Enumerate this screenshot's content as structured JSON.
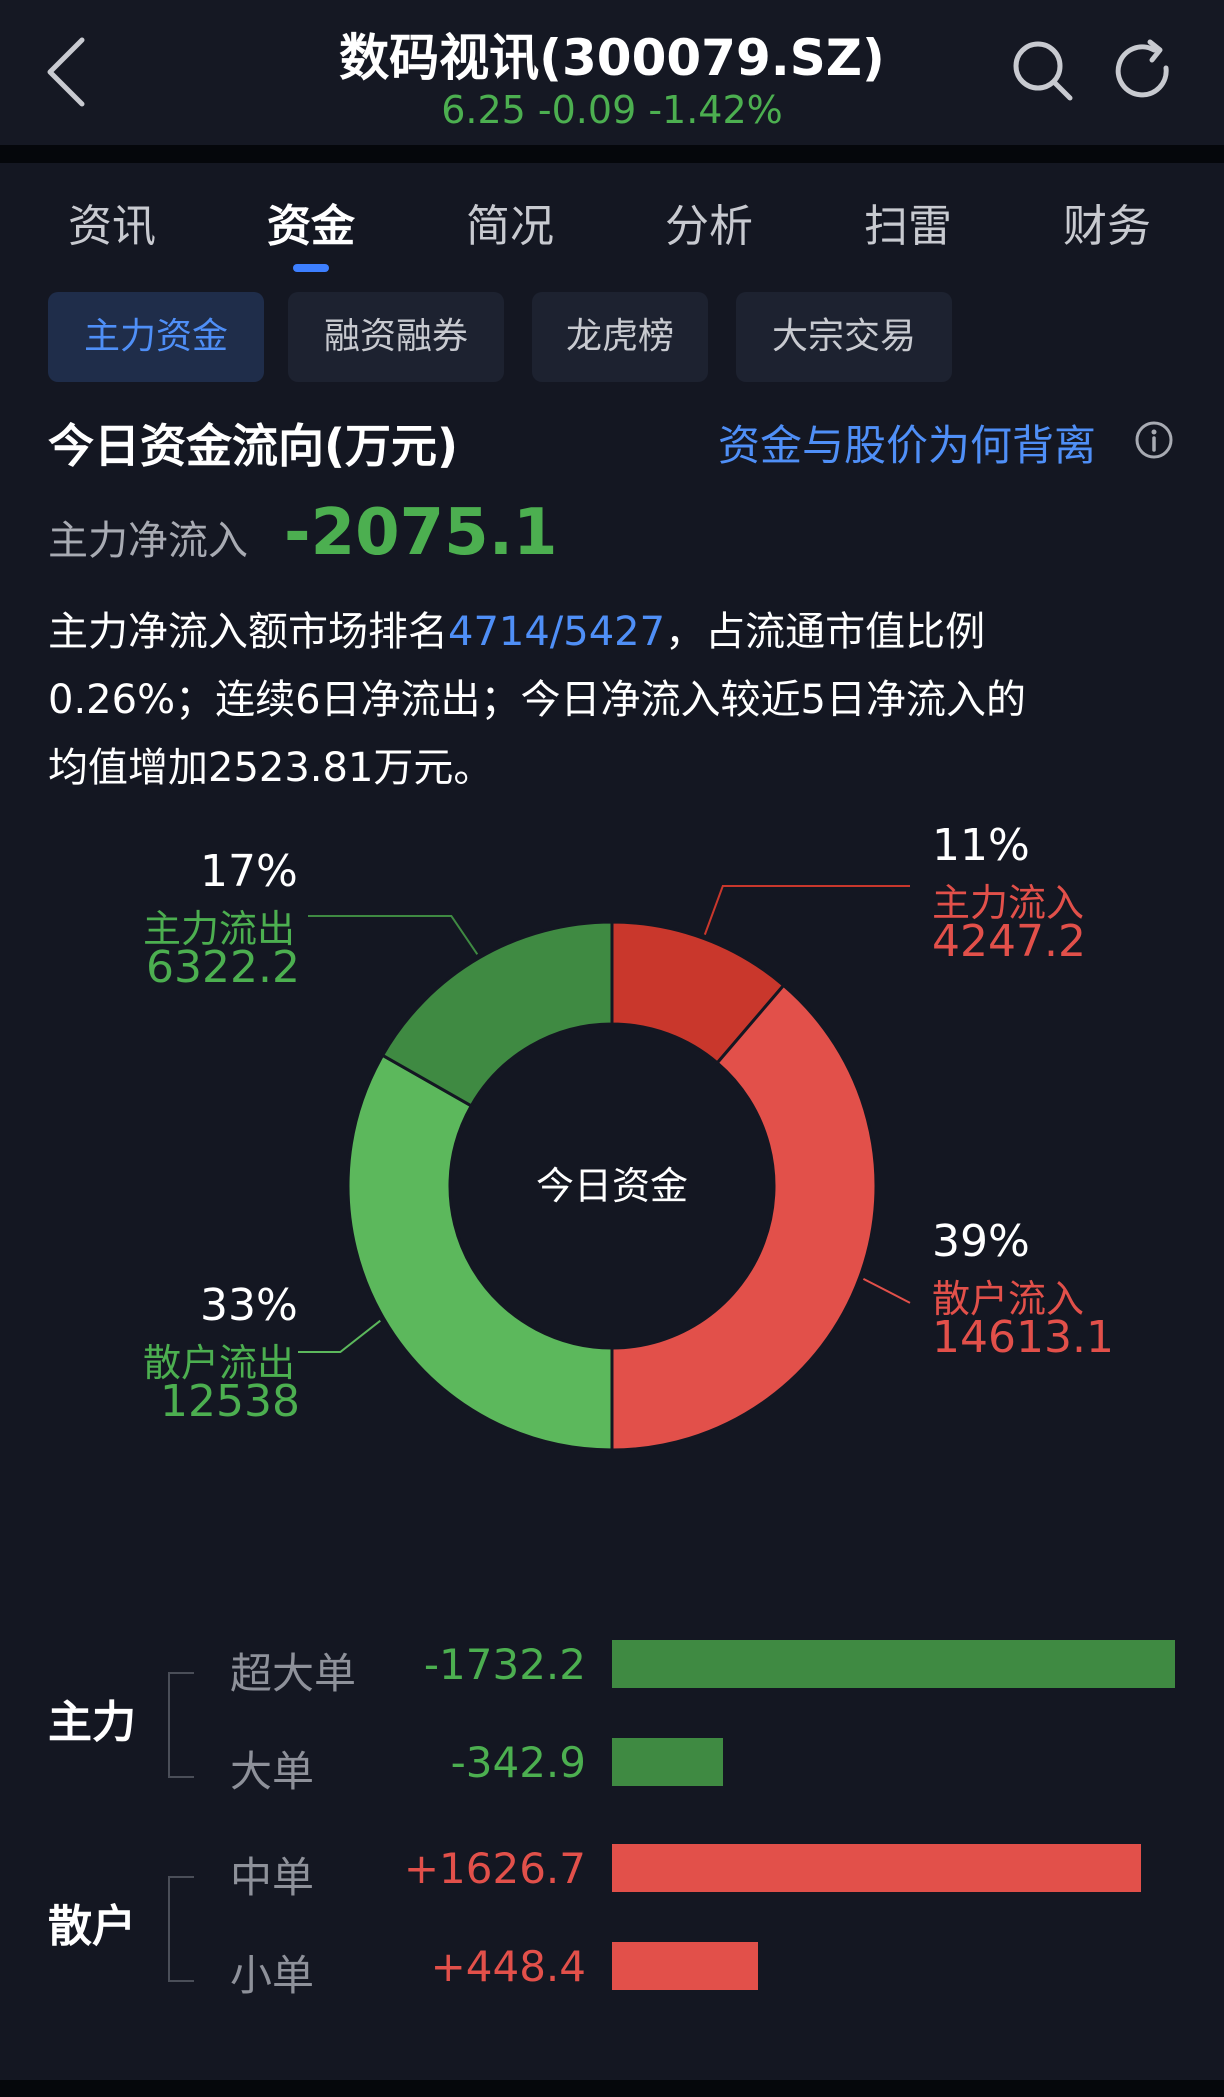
{
  "header": {
    "title": "数码视讯(300079.SZ)",
    "quote": "6.25 -0.09 -1.42%"
  },
  "tabs": [
    "资讯",
    "资金",
    "简况",
    "分析",
    "扫雷",
    "财务"
  ],
  "active_tab": 1,
  "subtabs": [
    "主力资金",
    "融资融券",
    "龙虎榜",
    "大宗交易"
  ],
  "section": {
    "title": "今日资金流向(万元)",
    "link": "资金与股价为何背离"
  },
  "net_inflow": {
    "label": "主力净流入",
    "value": "-2075.1"
  },
  "summary": {
    "line1_a": "主力净流入额市场排名",
    "rank": "4714/5427",
    "line1_b": "，占流通市值比例",
    "line2": "0.26%；连续6日净流出；今日净流入较近5日净流入的",
    "line3": "均值增加2523.81万元。"
  },
  "colors": {
    "inflow_main": "#c9372c",
    "inflow_retail": "#e2504a",
    "outflow_main": "#3f8a42",
    "outflow_retail": "#5cb85c",
    "accent": "#4f8ff7"
  },
  "chart_data": {
    "type": "pie",
    "center_label": "今日资金",
    "slices": [
      {
        "name": "主力流入",
        "value": 4247.2,
        "pct": "11%",
        "color": "#c9372c"
      },
      {
        "name": "散户流入",
        "value": 14613.1,
        "pct": "39%",
        "color": "#e2504a"
      },
      {
        "name": "散户流出",
        "value": 12538,
        "pct": "33%",
        "color": "#5cb85c"
      },
      {
        "name": "主力流出",
        "value": 6322.2,
        "pct": "17%",
        "color": "#3f8a42"
      }
    ]
  },
  "donut_labels": {
    "main_in": {
      "pct": "11%",
      "name": "主力流入",
      "value": "4247.2"
    },
    "retail_in": {
      "pct": "39%",
      "name": "散户流入",
      "value": "14613.1"
    },
    "retail_out": {
      "pct": "33%",
      "name": "散户流出",
      "value": "12538"
    },
    "main_out": {
      "pct": "17%",
      "name": "主力流出",
      "value": "6322.2"
    }
  },
  "order_breakdown": {
    "group_main": "主力",
    "group_retail": "散户",
    "rows": [
      {
        "label": "超大单",
        "value": "-1732.2",
        "amount": -1732.2
      },
      {
        "label": "大单",
        "value": "-342.9",
        "amount": -342.9
      },
      {
        "label": "中单",
        "value": "+1626.7",
        "amount": 1626.7
      },
      {
        "label": "小单",
        "value": "+448.4",
        "amount": 448.4
      }
    ]
  }
}
